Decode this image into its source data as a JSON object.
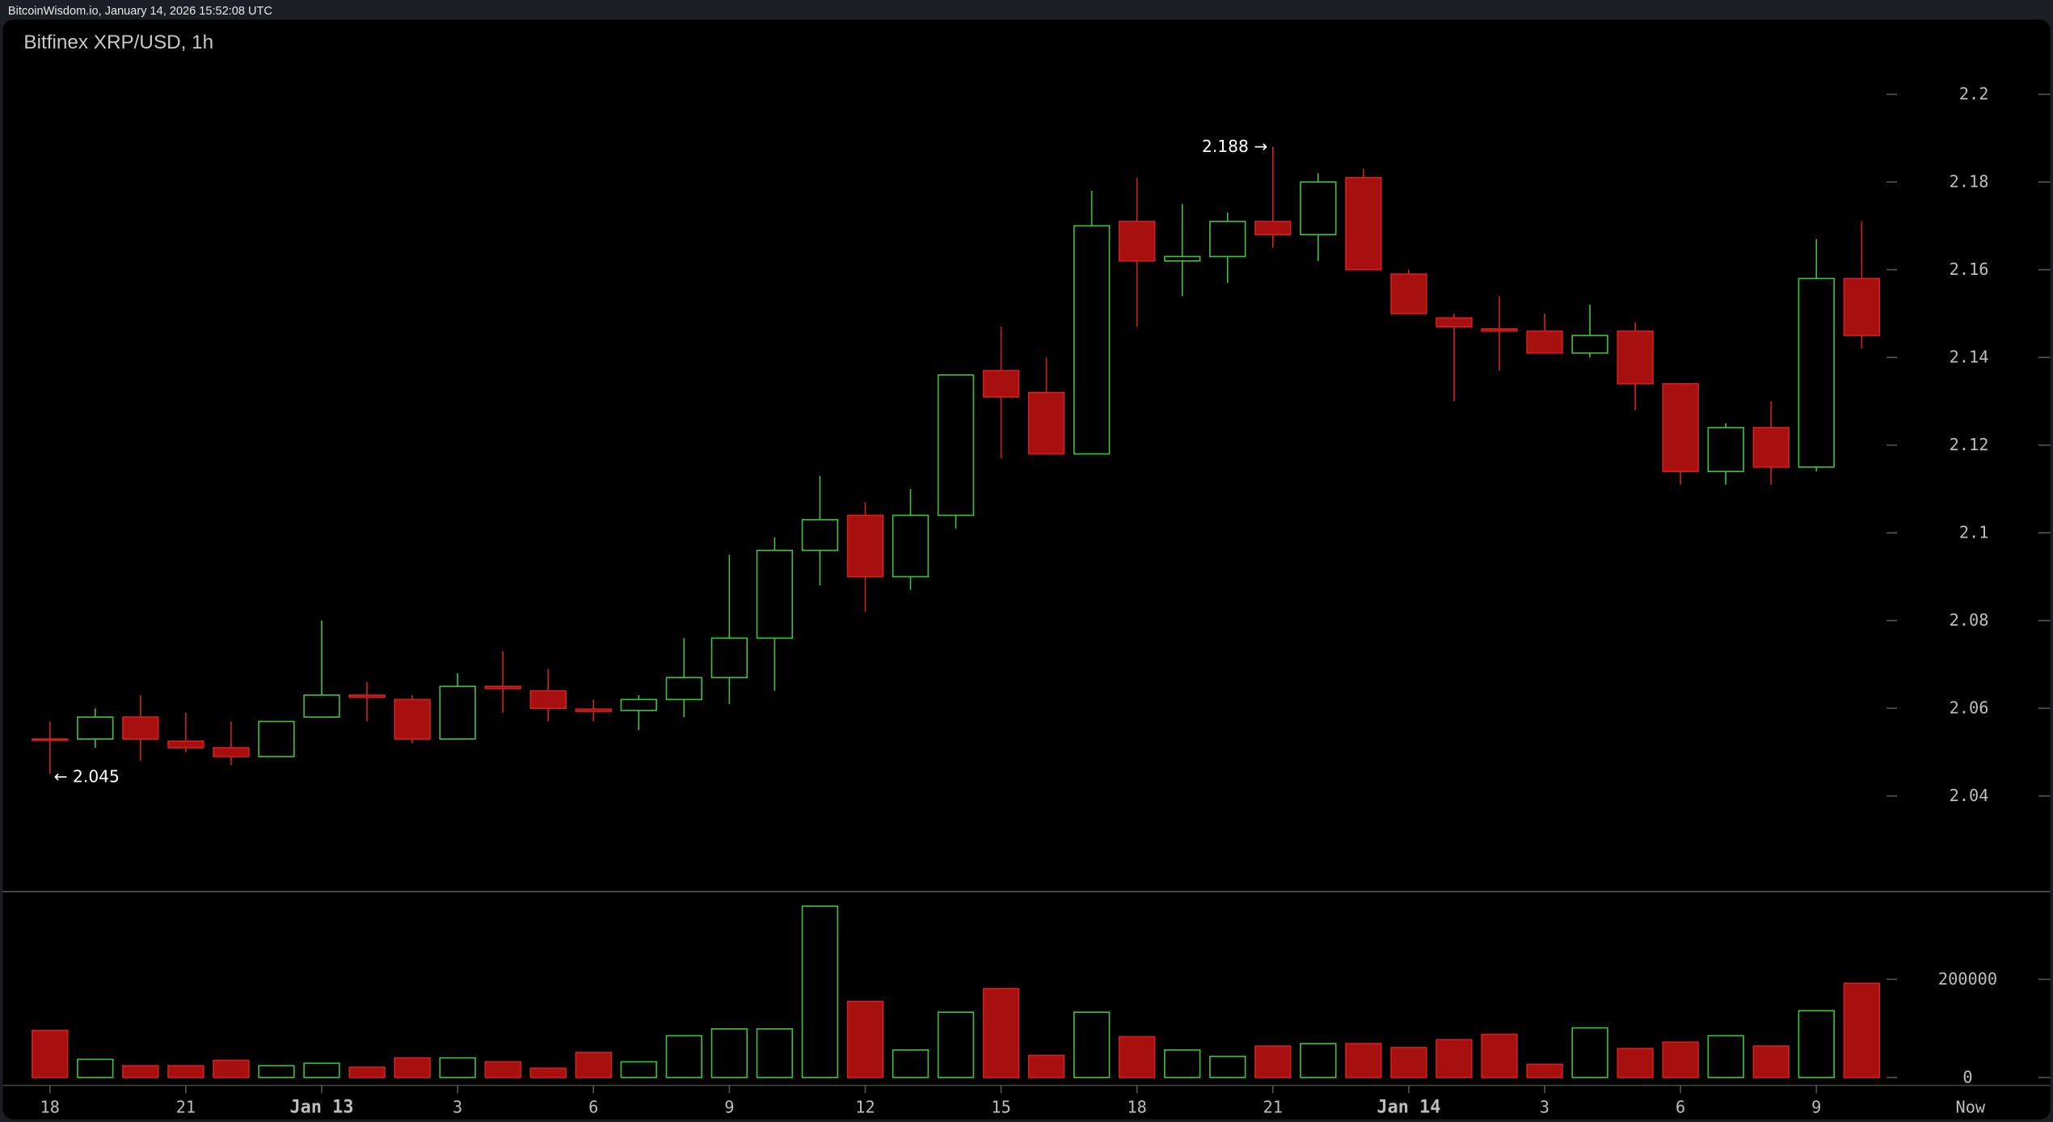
{
  "header": {
    "source_line": "BitcoinWisdom.io, January 14, 2026 15:52:08 UTC"
  },
  "colors": {
    "up": "#3cc23c",
    "down": "#a81010",
    "down_border": "#d02020",
    "background": "#000000"
  },
  "chart_data": {
    "type": "candlestick",
    "title": "Bitfinex XRP/USD, 1h",
    "grid": false,
    "price_axis": {
      "range": [
        2.02,
        2.21
      ],
      "ticks": [
        "2.2",
        "2.18",
        "2.16",
        "2.14",
        "2.12",
        "2.1",
        "2.08",
        "2.06",
        "2.04"
      ]
    },
    "volume_axis": {
      "range": [
        0,
        360000
      ],
      "ticks": [
        "200000",
        "0"
      ]
    },
    "x_ticks": [
      {
        "label": "18",
        "index": 0,
        "bold": false
      },
      {
        "label": "21",
        "index": 3,
        "bold": false
      },
      {
        "label": "Jan 13",
        "index": 6,
        "bold": true
      },
      {
        "label": "3",
        "index": 9,
        "bold": false
      },
      {
        "label": "6",
        "index": 12,
        "bold": false
      },
      {
        "label": "9",
        "index": 15,
        "bold": false
      },
      {
        "label": "12",
        "index": 18,
        "bold": false
      },
      {
        "label": "15",
        "index": 21,
        "bold": false
      },
      {
        "label": "18",
        "index": 24,
        "bold": false
      },
      {
        "label": "21",
        "index": 27,
        "bold": false
      },
      {
        "label": "Jan 14",
        "index": 30,
        "bold": true
      },
      {
        "label": "3",
        "index": 33,
        "bold": false
      },
      {
        "label": "6",
        "index": 36,
        "bold": false
      },
      {
        "label": "9",
        "index": 39,
        "bold": false
      },
      {
        "label": "Now",
        "index": 42.4,
        "bold": false
      }
    ],
    "annotations": [
      {
        "text": "2.188 →",
        "index": 27,
        "price": 2.188,
        "side": "left"
      },
      {
        "text": "← 2.045",
        "index": 0,
        "price": 2.045,
        "side": "right"
      }
    ],
    "candles": [
      {
        "o": 2.053,
        "h": 2.057,
        "l": 2.045,
        "c": 2.0528,
        "v": 96000
      },
      {
        "o": 2.053,
        "h": 2.06,
        "l": 2.051,
        "c": 2.058,
        "v": 37000
      },
      {
        "o": 2.058,
        "h": 2.063,
        "l": 2.048,
        "c": 2.053,
        "v": 24000
      },
      {
        "o": 2.0525,
        "h": 2.059,
        "l": 2.05,
        "c": 2.051,
        "v": 24000
      },
      {
        "o": 2.051,
        "h": 2.057,
        "l": 2.047,
        "c": 2.049,
        "v": 35000
      },
      {
        "o": 2.049,
        "h": 2.057,
        "l": 2.049,
        "c": 2.057,
        "v": 24000
      },
      {
        "o": 2.058,
        "h": 2.08,
        "l": 2.058,
        "c": 2.063,
        "v": 29000
      },
      {
        "o": 2.063,
        "h": 2.066,
        "l": 2.057,
        "c": 2.0625,
        "v": 21000
      },
      {
        "o": 2.062,
        "h": 2.063,
        "l": 2.052,
        "c": 2.053,
        "v": 40000
      },
      {
        "o": 2.053,
        "h": 2.068,
        "l": 2.053,
        "c": 2.065,
        "v": 40000
      },
      {
        "o": 2.065,
        "h": 2.073,
        "l": 2.059,
        "c": 2.0645,
        "v": 32000
      },
      {
        "o": 2.064,
        "h": 2.069,
        "l": 2.057,
        "c": 2.06,
        "v": 19000
      },
      {
        "o": 2.0598,
        "h": 2.062,
        "l": 2.057,
        "c": 2.0593,
        "v": 51000
      },
      {
        "o": 2.0595,
        "h": 2.063,
        "l": 2.055,
        "c": 2.062,
        "v": 32000
      },
      {
        "o": 2.062,
        "h": 2.076,
        "l": 2.058,
        "c": 2.067,
        "v": 85000
      },
      {
        "o": 2.067,
        "h": 2.095,
        "l": 2.061,
        "c": 2.076,
        "v": 99000
      },
      {
        "o": 2.076,
        "h": 2.099,
        "l": 2.064,
        "c": 2.096,
        "v": 99000
      },
      {
        "o": 2.096,
        "h": 2.113,
        "l": 2.088,
        "c": 2.103,
        "v": 349000
      },
      {
        "o": 2.104,
        "h": 2.107,
        "l": 2.082,
        "c": 2.09,
        "v": 155000
      },
      {
        "o": 2.09,
        "h": 2.11,
        "l": 2.087,
        "c": 2.104,
        "v": 56000
      },
      {
        "o": 2.104,
        "h": 2.136,
        "l": 2.101,
        "c": 2.136,
        "v": 133000
      },
      {
        "o": 2.137,
        "h": 2.147,
        "l": 2.117,
        "c": 2.131,
        "v": 181000
      },
      {
        "o": 2.132,
        "h": 2.14,
        "l": 2.118,
        "c": 2.118,
        "v": 45000
      },
      {
        "o": 2.118,
        "h": 2.178,
        "l": 2.118,
        "c": 2.17,
        "v": 133000
      },
      {
        "o": 2.171,
        "h": 2.181,
        "l": 2.147,
        "c": 2.162,
        "v": 83000
      },
      {
        "o": 2.162,
        "h": 2.175,
        "l": 2.154,
        "c": 2.163,
        "v": 56000
      },
      {
        "o": 2.163,
        "h": 2.173,
        "l": 2.157,
        "c": 2.171,
        "v": 43000
      },
      {
        "o": 2.171,
        "h": 2.188,
        "l": 2.165,
        "c": 2.168,
        "v": 64000
      },
      {
        "o": 2.168,
        "h": 2.182,
        "l": 2.162,
        "c": 2.18,
        "v": 69000
      },
      {
        "o": 2.181,
        "h": 2.183,
        "l": 2.16,
        "c": 2.16,
        "v": 69000
      },
      {
        "o": 2.159,
        "h": 2.16,
        "l": 2.15,
        "c": 2.15,
        "v": 61000
      },
      {
        "o": 2.149,
        "h": 2.15,
        "l": 2.13,
        "c": 2.147,
        "v": 77000
      },
      {
        "o": 2.1465,
        "h": 2.154,
        "l": 2.137,
        "c": 2.146,
        "v": 88000
      },
      {
        "o": 2.146,
        "h": 2.15,
        "l": 2.141,
        "c": 2.141,
        "v": 27000
      },
      {
        "o": 2.141,
        "h": 2.152,
        "l": 2.14,
        "c": 2.145,
        "v": 101000
      },
      {
        "o": 2.146,
        "h": 2.148,
        "l": 2.128,
        "c": 2.134,
        "v": 59000
      },
      {
        "o": 2.134,
        "h": 2.134,
        "l": 2.111,
        "c": 2.114,
        "v": 72000
      },
      {
        "o": 2.114,
        "h": 2.125,
        "l": 2.111,
        "c": 2.124,
        "v": 85000
      },
      {
        "o": 2.124,
        "h": 2.13,
        "l": 2.111,
        "c": 2.115,
        "v": 64000
      },
      {
        "o": 2.115,
        "h": 2.167,
        "l": 2.114,
        "c": 2.158,
        "v": 136000
      },
      {
        "o": 2.158,
        "h": 2.171,
        "l": 2.142,
        "c": 2.145,
        "v": 192000
      }
    ]
  }
}
